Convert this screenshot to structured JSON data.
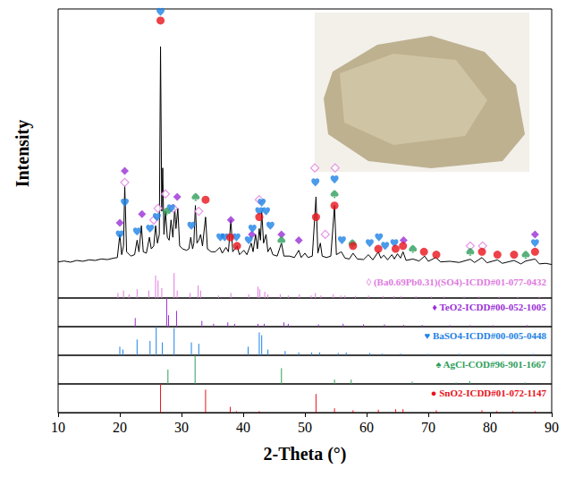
{
  "chart_data": {
    "type": "line",
    "x_label": "2-Theta (°)",
    "y_label": "Intensity",
    "xlim": [
      10,
      90
    ],
    "xticks": [
      10,
      20,
      30,
      40,
      50,
      60,
      70,
      80,
      90
    ],
    "ylim": [
      0,
      100
    ],
    "yticks": [],
    "tick_labels": "x",
    "grid": false,
    "color": "#000000",
    "x": [
      10,
      11,
      12,
      13,
      14,
      15,
      16,
      17,
      18,
      19,
      19.6,
      20.0,
      20.3,
      20.6,
      20.8,
      21.1,
      21.8,
      22.4,
      22.8,
      23.1,
      23.5,
      23.8,
      24.3,
      24.8,
      25.1,
      25.5,
      25.8,
      26.1,
      26.4,
      26.6,
      26.8,
      26.95,
      27.15,
      27.4,
      27.7,
      28.0,
      28.3,
      28.6,
      28.9,
      29.1,
      29.4,
      29.7,
      30.2,
      30.8,
      31.2,
      31.5,
      31.8,
      32.0,
      32.25,
      32.5,
      32.8,
      33.1,
      33.4,
      33.9,
      34.2,
      34.8,
      35.5,
      36.2,
      36.6,
      37.2,
      37.6,
      38.0,
      38.3,
      39.0,
      39.4,
      40.1,
      40.6,
      41.3,
      41.6,
      42.0,
      42.3,
      42.6,
      42.8,
      43.0,
      43.3,
      43.7,
      44.0,
      44.4,
      44.8,
      45.5,
      46.2,
      46.6,
      47.5,
      48.3,
      49.0,
      49.4,
      50.0,
      50.5,
      51.2,
      51.8,
      52.1,
      52.5,
      52.8,
      53.5,
      54.2,
      54.8,
      55.1,
      55.9,
      56.5,
      57.2,
      57.8,
      58.5,
      59.5,
      60.3,
      61.0,
      61.9,
      62.3,
      62.8,
      63.4,
      64.1,
      64.5,
      65.0,
      65.5,
      65.9,
      66.4,
      67.5,
      68.5,
      69.4,
      70.0,
      71.2,
      72,
      73.5,
      75,
      76.8,
      77.5,
      78.7,
      79.5,
      81.2,
      82,
      83.9,
      85,
      85.8,
      87.3,
      88,
      89,
      90
    ],
    "values": [
      12.5,
      12.8,
      12.4,
      13.0,
      12.7,
      13.2,
      13.0,
      13.5,
      13.3,
      13.8,
      14,
      22,
      15,
      18,
      39,
      16,
      14.5,
      15,
      20,
      16,
      25,
      16,
      15.5,
      21,
      17,
      18,
      25,
      19,
      22,
      87,
      30,
      45,
      22,
      30,
      21,
      20,
      27,
      21,
      31,
      24,
      31,
      18,
      17,
      16.5,
      17,
      21,
      17,
      19,
      32,
      19,
      20,
      22,
      18,
      28,
      17,
      16,
      16,
      17.5,
      15.5,
      17.5,
      16,
      27,
      16,
      18,
      15,
      16.5,
      15,
      19,
      16,
      22,
      17,
      24,
      20,
      30,
      19,
      22,
      16,
      17.5,
      15,
      14.5,
      19,
      14.5,
      14.5,
      14,
      16.5,
      14,
      15.5,
      14,
      14.5,
      35,
      15.5,
      19,
      14.5,
      14,
      14.5,
      32,
      15,
      16,
      13.8,
      13.5,
      15.5,
      13.5,
      13.3,
      15,
      13.2,
      16,
      13.8,
      14.8,
      13.2,
      15,
      13.5,
      15.3,
      13.8,
      16,
      13,
      13.5,
      12.8,
      14.5,
      12.7,
      14,
      12.5,
      12.7,
      12.3,
      13.4,
      12.3,
      14,
      12.2,
      13.2,
      12,
      13,
      11.8,
      12.8,
      13.5,
      11.8,
      12,
      11.6
    ],
    "phases": [
      {
        "name": "◊ (Ba0.69Pb0.31)(SO4)-ICDD#01-077-0432",
        "color": "#e07be0",
        "marker": "diamond_open",
        "ylim": [
          0,
          100
        ],
        "yticks": [],
        "markers": [
          [
            20.8,
            40
          ],
          [
            25.5,
            27
          ],
          [
            26.2,
            31
          ],
          [
            27.4,
            36
          ],
          [
            28.7,
            31
          ],
          [
            32.8,
            30
          ],
          [
            42.6,
            34
          ],
          [
            51.6,
            45
          ],
          [
            53.3,
            22
          ],
          [
            54.9,
            45
          ],
          [
            76.8,
            18
          ],
          [
            78.8,
            18
          ]
        ],
        "sticks": [
          [
            19.7,
            20
          ],
          [
            20.6,
            30
          ],
          [
            21.5,
            15
          ],
          [
            22.8,
            35
          ],
          [
            24.7,
            30
          ],
          [
            25.8,
            90
          ],
          [
            26.2,
            70
          ],
          [
            26.8,
            40
          ],
          [
            28.8,
            100
          ],
          [
            29.3,
            30
          ],
          [
            31.4,
            20
          ],
          [
            32.7,
            50
          ],
          [
            33.1,
            30
          ],
          [
            36.0,
            10
          ],
          [
            38.0,
            20
          ],
          [
            40.9,
            15
          ],
          [
            42.4,
            45
          ],
          [
            42.7,
            35
          ],
          [
            43.5,
            25
          ],
          [
            44.0,
            15
          ],
          [
            46.0,
            15
          ],
          [
            47.3,
            10
          ],
          [
            49.1,
            15
          ],
          [
            51.0,
            10
          ],
          [
            51.7,
            20
          ],
          [
            52.6,
            10
          ],
          [
            54.6,
            15
          ],
          [
            55.8,
            10
          ],
          [
            56.5,
            10
          ],
          [
            58.2,
            8
          ],
          [
            60.3,
            10
          ],
          [
            62.7,
            8
          ],
          [
            64.4,
            8
          ],
          [
            65.6,
            8
          ],
          [
            68.0,
            8
          ],
          [
            70.5,
            6
          ],
          [
            72.6,
            6
          ],
          [
            75.8,
            6
          ],
          [
            78.2,
            6
          ],
          [
            81.5,
            5
          ],
          [
            84.5,
            5
          ],
          [
            88.0,
            5
          ]
        ]
      },
      {
        "name": "♦ TeO2-ICDD#00-052-1005",
        "color": "#9a2fd6",
        "marker": "diamond",
        "ylim": [
          0,
          100
        ],
        "yticks": [],
        "markers": [
          [
            20.0,
            26
          ],
          [
            20.8,
            44
          ],
          [
            23.6,
            29
          ],
          [
            29.3,
            35
          ],
          [
            38.0,
            27
          ],
          [
            41.4,
            22
          ],
          [
            46.2,
            22
          ],
          [
            49.0,
            20
          ],
          [
            66.0,
            20
          ],
          [
            87.3,
            22
          ]
        ],
        "sticks": [
          [
            22.5,
            30
          ],
          [
            27.6,
            100
          ],
          [
            27.9,
            40
          ],
          [
            29.2,
            55
          ],
          [
            33.3,
            20
          ],
          [
            35.2,
            10
          ],
          [
            37.5,
            15
          ],
          [
            38.6,
            10
          ],
          [
            42.4,
            10
          ],
          [
            43.4,
            10
          ],
          [
            46.6,
            15
          ],
          [
            47.3,
            10
          ],
          [
            52.2,
            8
          ],
          [
            56.2,
            10
          ],
          [
            59.5,
            8
          ],
          [
            62.9,
            8
          ],
          [
            66.0,
            6
          ],
          [
            69.0,
            6
          ],
          [
            73.5,
            5
          ],
          [
            76.8,
            5
          ],
          [
            80.5,
            5
          ],
          [
            86.0,
            5
          ]
        ]
      },
      {
        "name": "♥ BaSO4-ICDD#00-005-0448",
        "color": "#1e82e6",
        "marker": "heart",
        "ylim": [
          0,
          100
        ],
        "yticks": [],
        "markers": [
          [
            20.0,
            22
          ],
          [
            20.8,
            33
          ],
          [
            22.8,
            23
          ],
          [
            24.9,
            24
          ],
          [
            26.0,
            28
          ],
          [
            26.6,
            99
          ],
          [
            28.3,
            31
          ],
          [
            31.6,
            25
          ],
          [
            36.3,
            21
          ],
          [
            37.0,
            21
          ],
          [
            38.9,
            21
          ],
          [
            40.9,
            20
          ],
          [
            41.5,
            24
          ],
          [
            42.6,
            30
          ],
          [
            43.0,
            33
          ],
          [
            43.7,
            30
          ],
          [
            44.4,
            25
          ],
          [
            51.7,
            40
          ],
          [
            54.8,
            41
          ],
          [
            56.0,
            20
          ],
          [
            60.5,
            19
          ],
          [
            62.0,
            21
          ],
          [
            63.0,
            18
          ],
          [
            64.5,
            19
          ],
          [
            87.3,
            19
          ]
        ],
        "sticks": [
          [
            20.0,
            30
          ],
          [
            20.5,
            20
          ],
          [
            22.8,
            55
          ],
          [
            24.9,
            50
          ],
          [
            25.9,
            100
          ],
          [
            26.9,
            45
          ],
          [
            28.8,
            95
          ],
          [
            31.6,
            45
          ],
          [
            32.8,
            40
          ],
          [
            40.8,
            30
          ],
          [
            42.6,
            80
          ],
          [
            43.0,
            70
          ],
          [
            44.0,
            20
          ],
          [
            46.8,
            15
          ],
          [
            49.0,
            10
          ],
          [
            51.1,
            10
          ],
          [
            52.4,
            10
          ],
          [
            55.4,
            8
          ],
          [
            56.7,
            10
          ],
          [
            60.5,
            8
          ],
          [
            62.5,
            6
          ],
          [
            65.5,
            6
          ],
          [
            70.0,
            5
          ],
          [
            75.0,
            5
          ],
          [
            82.0,
            5
          ],
          [
            87.0,
            5
          ]
        ]
      },
      {
        "name": "♠ AgCl-COD#96-901-1667",
        "color": "#2e9e5b",
        "marker": "spade",
        "ylim": [
          0,
          100
        ],
        "yticks": [],
        "markers": [
          [
            27.6,
            30
          ],
          [
            32.3,
            35
          ],
          [
            46.2,
            20
          ],
          [
            54.8,
            36
          ],
          [
            57.7,
            19
          ],
          [
            67.5,
            17
          ],
          [
            76.8,
            16
          ],
          [
            85.8,
            15
          ]
        ],
        "sticks": [
          [
            27.8,
            50
          ],
          [
            32.2,
            100
          ],
          [
            46.2,
            55
          ],
          [
            54.8,
            15
          ],
          [
            57.5,
            15
          ],
          [
            67.4,
            8
          ],
          [
            74.5,
            5
          ],
          [
            76.7,
            10
          ],
          [
            85.7,
            5
          ]
        ]
      },
      {
        "name": "● SnO2-ICDD#01-072-1147",
        "color": "#e8131b",
        "marker": "circle",
        "ylim": [
          0,
          100
        ],
        "yticks": [],
        "markers": [
          [
            26.6,
            96
          ],
          [
            33.9,
            34
          ],
          [
            37.9,
            21
          ],
          [
            39.0,
            18
          ],
          [
            42.6,
            28
          ],
          [
            51.8,
            28
          ],
          [
            54.8,
            32
          ],
          [
            57.8,
            18
          ],
          [
            61.9,
            17
          ],
          [
            64.7,
            17
          ],
          [
            65.9,
            18
          ],
          [
            69.3,
            16
          ],
          [
            71.3,
            15
          ],
          [
            78.7,
            16
          ],
          [
            81.2,
            15
          ],
          [
            83.9,
            15
          ],
          [
            87.3,
            16
          ]
        ],
        "sticks": [
          [
            26.6,
            100
          ],
          [
            33.9,
            80
          ],
          [
            37.9,
            20
          ],
          [
            38.9,
            5
          ],
          [
            42.6,
            5
          ],
          [
            51.8,
            65
          ],
          [
            54.8,
            15
          ],
          [
            57.8,
            8
          ],
          [
            61.9,
            10
          ],
          [
            64.7,
            12
          ],
          [
            65.9,
            12
          ],
          [
            71.3,
            8
          ],
          [
            78.7,
            8
          ],
          [
            81.1,
            5
          ],
          [
            83.7,
            5
          ],
          [
            87.3,
            5
          ]
        ]
      }
    ]
  }
}
